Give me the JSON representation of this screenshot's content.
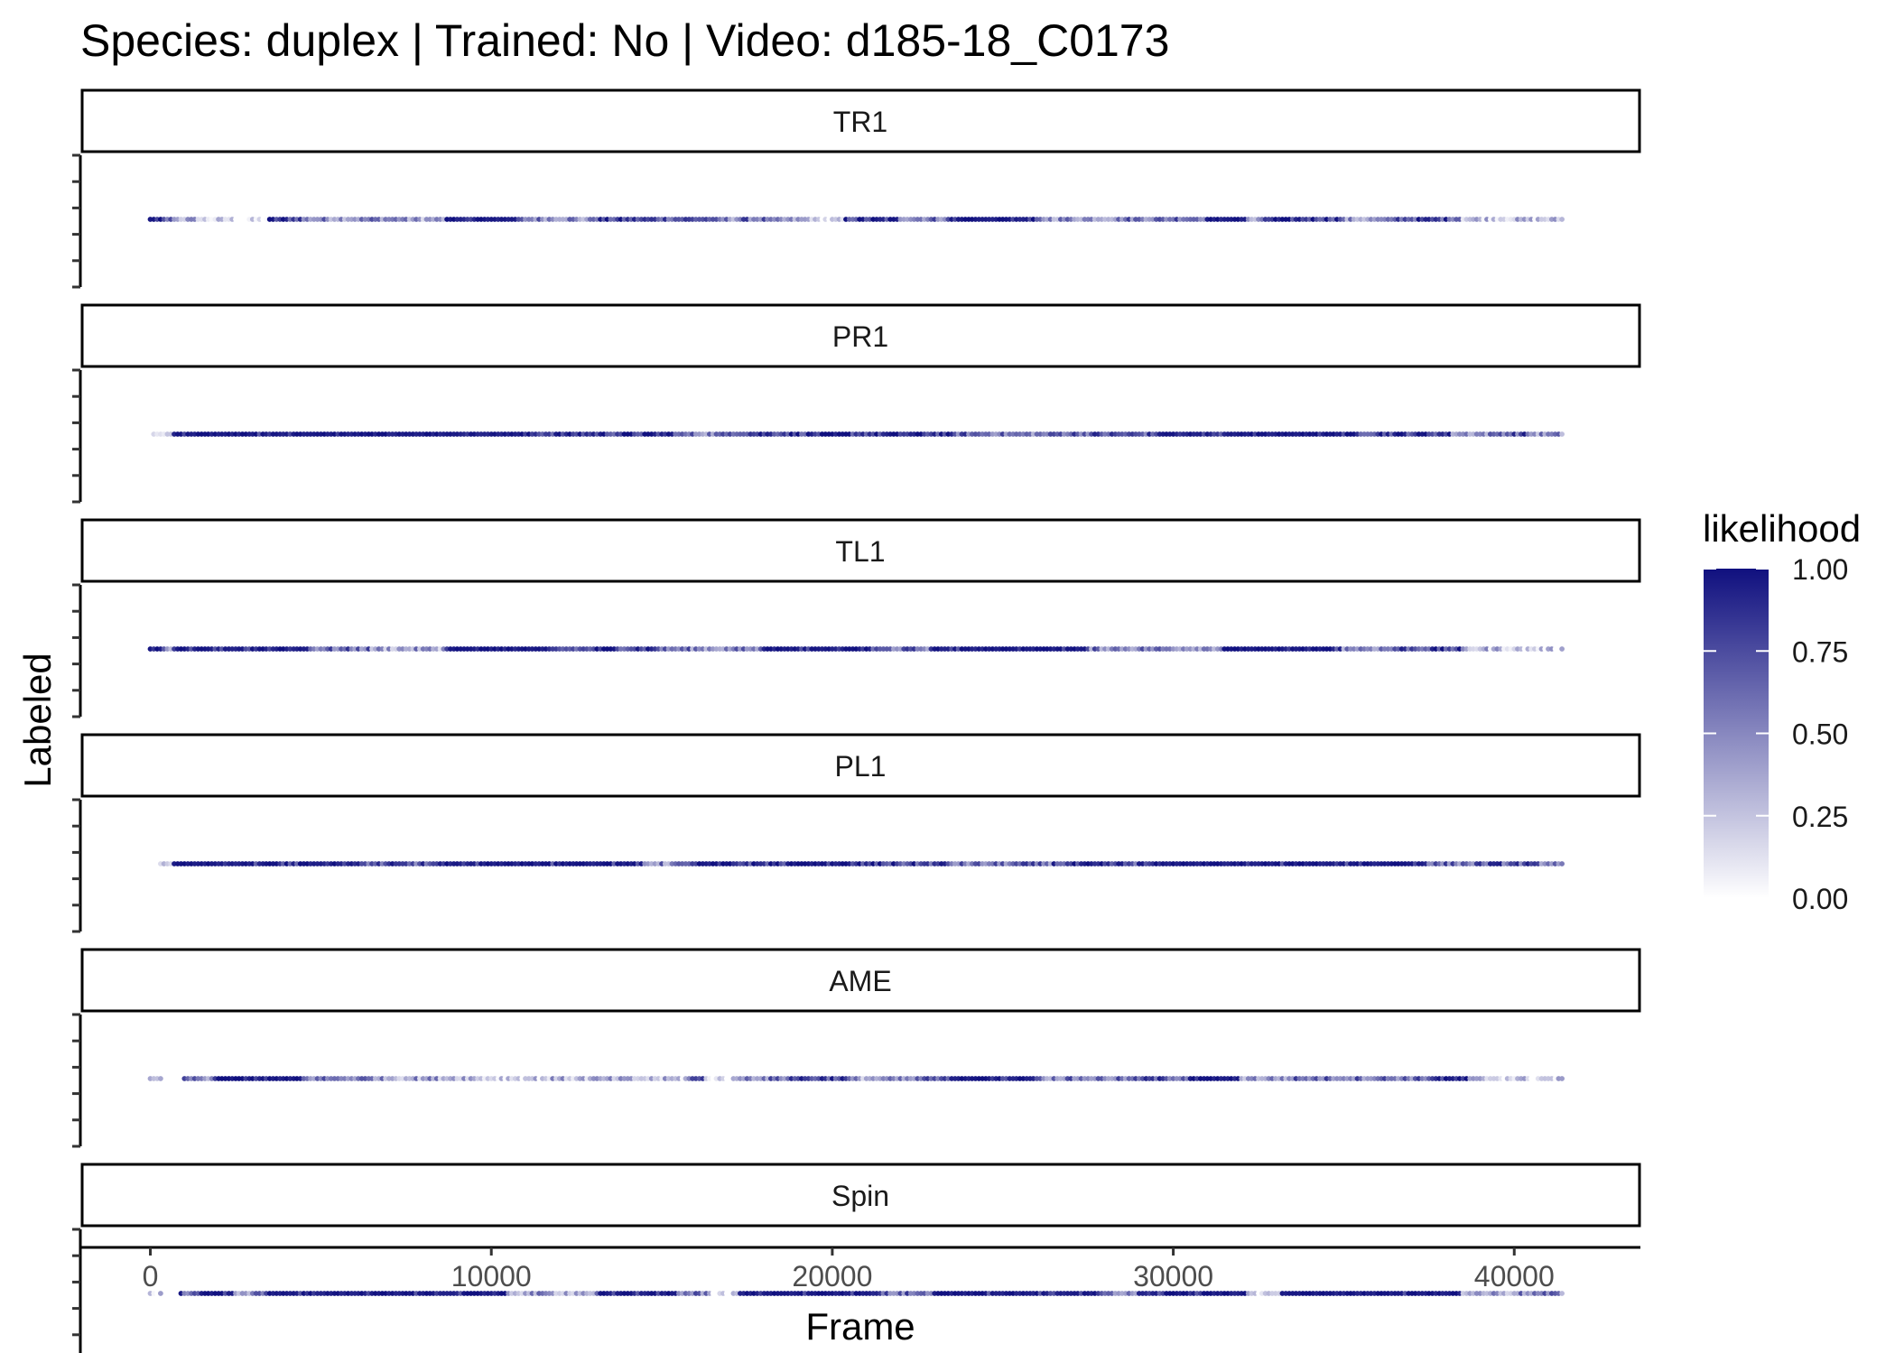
{
  "chart_data": {
    "type": "scatter",
    "title": "Species: duplex | Trained: No | Video: d185-18_C0173",
    "xlabel": "Frame",
    "ylabel": "Labeled",
    "xlim": [
      -2000,
      43700
    ],
    "x_ticks": [
      0,
      10000,
      20000,
      30000,
      40000
    ],
    "x_tick_labels": [
      "0",
      "10000",
      "20000",
      "30000",
      "40000"
    ],
    "frame_range": [
      0,
      41500
    ],
    "legend": {
      "title": "likelihood",
      "position": "right",
      "ticks": [
        1.0,
        0.75,
        0.5,
        0.25,
        0.0
      ],
      "tick_labels": [
        "1.00",
        "0.75",
        "0.50",
        "0.25",
        "0.00"
      ],
      "color_low": "#ffffff",
      "color_high": "#10107f"
    },
    "grid": false,
    "panels": [
      {
        "label": "TR1",
        "segments": [
          [
            0,
            400,
            0.95
          ],
          [
            400,
            800,
            0.6
          ],
          [
            800,
            1500,
            0.35
          ],
          [
            1500,
            2500,
            0.15
          ],
          [
            2500,
            3500,
            0.05
          ],
          [
            3500,
            4500,
            0.8
          ],
          [
            4500,
            6500,
            0.5
          ],
          [
            6500,
            7500,
            0.55
          ],
          [
            7500,
            8700,
            0.4
          ],
          [
            8700,
            10800,
            0.92
          ],
          [
            10800,
            12500,
            0.55
          ],
          [
            12500,
            13000,
            0.4
          ],
          [
            13000,
            16500,
            0.75
          ],
          [
            16500,
            17300,
            0.5
          ],
          [
            17300,
            18200,
            0.6
          ],
          [
            18200,
            19500,
            0.35
          ],
          [
            19500,
            20400,
            0.1
          ],
          [
            20400,
            22000,
            0.8
          ],
          [
            22000,
            23500,
            0.6
          ],
          [
            23500,
            26000,
            0.97
          ],
          [
            26000,
            28500,
            0.5
          ],
          [
            28500,
            30000,
            0.6
          ],
          [
            30000,
            31000,
            0.7
          ],
          [
            31000,
            32200,
            0.97
          ],
          [
            32200,
            32700,
            0.3
          ],
          [
            32700,
            35000,
            0.85
          ],
          [
            35000,
            36500,
            0.4
          ],
          [
            36500,
            38500,
            0.75
          ],
          [
            38500,
            40000,
            0.3
          ],
          [
            40000,
            41500,
            0.25
          ]
        ]
      },
      {
        "label": "PR1",
        "segments": [
          [
            0,
            400,
            0.1
          ],
          [
            400,
            700,
            0.35
          ],
          [
            700,
            8700,
            0.95
          ],
          [
            8700,
            10800,
            0.92
          ],
          [
            10800,
            15500,
            0.85
          ],
          [
            15500,
            17000,
            0.55
          ],
          [
            17000,
            23500,
            0.85
          ],
          [
            23500,
            25000,
            0.65
          ],
          [
            25000,
            26500,
            0.55
          ],
          [
            26500,
            29500,
            0.7
          ],
          [
            29500,
            35000,
            0.9
          ],
          [
            35000,
            38200,
            0.85
          ],
          [
            38200,
            39500,
            0.5
          ],
          [
            39500,
            40500,
            0.7
          ],
          [
            40500,
            41500,
            0.45
          ]
        ]
      },
      {
        "label": "TL1",
        "segments": [
          [
            0,
            500,
            0.95
          ],
          [
            500,
            700,
            0.2
          ],
          [
            700,
            4700,
            0.95
          ],
          [
            4700,
            6500,
            0.6
          ],
          [
            6500,
            8700,
            0.4
          ],
          [
            8700,
            11500,
            0.95
          ],
          [
            11500,
            13000,
            0.7
          ],
          [
            13000,
            15000,
            0.85
          ],
          [
            15000,
            16200,
            0.55
          ],
          [
            16200,
            18000,
            0.5
          ],
          [
            18000,
            21200,
            0.92
          ],
          [
            21200,
            23000,
            0.6
          ],
          [
            23000,
            27500,
            0.93
          ],
          [
            27500,
            31500,
            0.55
          ],
          [
            31500,
            35000,
            0.9
          ],
          [
            35000,
            36500,
            0.55
          ],
          [
            36500,
            38500,
            0.75
          ],
          [
            38500,
            40000,
            0.3
          ],
          [
            40000,
            41500,
            0.2
          ]
        ]
      },
      {
        "label": "PL1",
        "segments": [
          [
            0,
            400,
            0.05
          ],
          [
            400,
            700,
            0.25
          ],
          [
            700,
            1700,
            0.95
          ],
          [
            1700,
            6000,
            0.88
          ],
          [
            6000,
            8700,
            0.7
          ],
          [
            8700,
            14500,
            0.9
          ],
          [
            14500,
            15800,
            0.5
          ],
          [
            15800,
            18700,
            0.85
          ],
          [
            18700,
            20500,
            0.9
          ],
          [
            20500,
            22000,
            0.8
          ],
          [
            22000,
            23500,
            0.75
          ],
          [
            23500,
            25000,
            0.55
          ],
          [
            25000,
            26500,
            0.6
          ],
          [
            26500,
            29500,
            0.75
          ],
          [
            29500,
            37500,
            0.92
          ],
          [
            37500,
            39000,
            0.6
          ],
          [
            39000,
            40500,
            0.7
          ],
          [
            40500,
            41500,
            0.6
          ]
        ]
      },
      {
        "label": "AME",
        "segments": [
          [
            0,
            400,
            0.12
          ],
          [
            1000,
            2000,
            0.55
          ],
          [
            2000,
            4500,
            0.92
          ],
          [
            4500,
            6800,
            0.55
          ],
          [
            6800,
            9500,
            0.4
          ],
          [
            9500,
            11500,
            0.25
          ],
          [
            11500,
            14000,
            0.3
          ],
          [
            14000,
            15800,
            0.25
          ],
          [
            15800,
            16300,
            0.7
          ],
          [
            16300,
            17300,
            0.15
          ],
          [
            17300,
            18700,
            0.55
          ],
          [
            18700,
            20500,
            0.8
          ],
          [
            20500,
            22500,
            0.4
          ],
          [
            22500,
            23500,
            0.6
          ],
          [
            23500,
            26200,
            0.95
          ],
          [
            26200,
            29000,
            0.55
          ],
          [
            29000,
            30500,
            0.7
          ],
          [
            30500,
            32000,
            0.95
          ],
          [
            32000,
            33500,
            0.45
          ],
          [
            33500,
            37500,
            0.6
          ],
          [
            37500,
            38700,
            0.85
          ],
          [
            38700,
            40000,
            0.25
          ],
          [
            40000,
            41500,
            0.2
          ]
        ]
      },
      {
        "label": "Spin",
        "segments": [
          [
            0,
            400,
            0.2
          ],
          [
            900,
            1500,
            0.7
          ],
          [
            1500,
            2500,
            0.92
          ],
          [
            2500,
            3500,
            0.5
          ],
          [
            3500,
            9500,
            0.93
          ],
          [
            9500,
            10500,
            0.97
          ],
          [
            10500,
            13200,
            0.4
          ],
          [
            13200,
            15500,
            0.92
          ],
          [
            15500,
            16500,
            0.55
          ],
          [
            16500,
            17300,
            0.1
          ],
          [
            17300,
            21500,
            0.92
          ],
          [
            21500,
            23000,
            0.6
          ],
          [
            23000,
            27800,
            0.92
          ],
          [
            27800,
            29000,
            0.6
          ],
          [
            29000,
            32200,
            0.93
          ],
          [
            32200,
            33200,
            0.15
          ],
          [
            33200,
            38500,
            0.9
          ],
          [
            38500,
            40000,
            0.4
          ],
          [
            40000,
            41500,
            0.5
          ]
        ]
      }
    ]
  }
}
